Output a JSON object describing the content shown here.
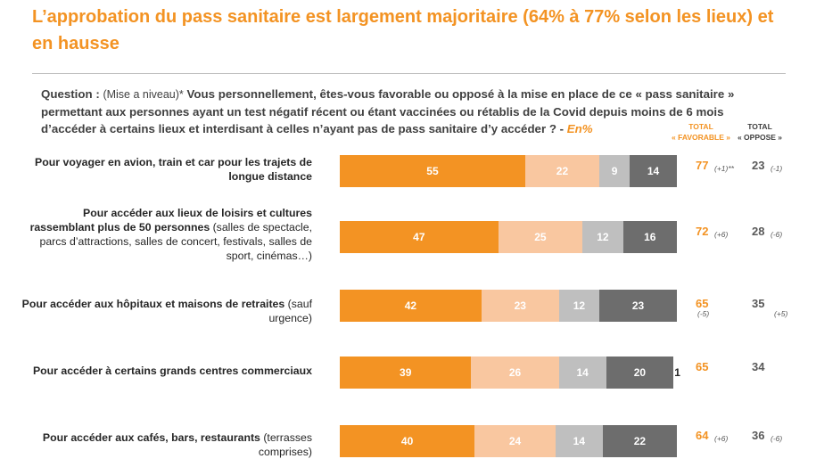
{
  "title": "L’approbation du pass sanitaire est largement majoritaire (64% à 77% selon les lieux) et en hausse",
  "question": {
    "prefix": "Question :",
    "tag": "(Mise a niveau)*",
    "text": " Vous personnellement, êtes-vous favorable ou opposé à la mise en place de ce « pass sanitaire » permettant aux personnes ayant un test négatif récent ou étant vaccinées ou rétablis de la Covid depuis moins de 6 mois d’accéder à certains lieux et interdisant à celles n’ayant pas de pass sanitaire d’y accéder ? -",
    "unit": " En%"
  },
  "headers": {
    "favorable_line1": "TOTAL",
    "favorable_line2": "« FAVORABLE »",
    "oppose_line1": "TOTAL",
    "oppose_line2": "« OPPOSE »"
  },
  "colors": {
    "tout_a_fait_favorable": "#f39323",
    "plutot_favorable": "#f9c7a0",
    "plutot_oppose": "#bfbfbf",
    "tout_a_fait_oppose": "#6d6d6d",
    "accent": "#f39323"
  },
  "chart_data": {
    "type": "bar",
    "orientation": "horizontal-stacked",
    "unit": "%",
    "categories": [
      "Pour voyager en avion, train et car pour les trajets de longue distance",
      "Pour accéder aux lieux de loisirs et cultures rassemblant plus de 50 personnes (salles de spectacle, parcs d’attractions, salles de concert, festivals, salles de sport, cinémas…)",
      "Pour accéder aux hôpitaux et maisons de retraites (sauf urgence)",
      "Pour accéder à certains grands centres commerciaux",
      "Pour accéder aux cafés, bars, restaurants (terrasses comprises)"
    ],
    "rows": [
      {
        "label_bold": "Pour voyager en avion, train et car pour les trajets de longue distance",
        "label_normal": "",
        "segments": [
          55,
          22,
          9,
          14
        ],
        "extra": "",
        "total_favorable": "77",
        "evo_favorable": "(+1)**",
        "total_oppose": "23",
        "evo_oppose": "(-1)"
      },
      {
        "label_bold": "Pour accéder aux lieux de loisirs et cultures rassemblant plus de 50 personnes",
        "label_normal": " (salles de spectacle, parcs d’attractions, salles de concert, festivals, salles de sport, cinémas…)",
        "segments": [
          47,
          25,
          12,
          16
        ],
        "extra": "",
        "total_favorable": "72",
        "evo_favorable": "(+6)",
        "total_oppose": "28",
        "evo_oppose": "(-6)"
      },
      {
        "label_bold": "Pour accéder aux hôpitaux et maisons de retraites",
        "label_normal": " (sauf urgence)",
        "segments": [
          42,
          23,
          12,
          23
        ],
        "extra": "",
        "total_favorable": "65",
        "evo_favorable": "(-5)",
        "total_oppose": "35",
        "evo_oppose": "(+5)"
      },
      {
        "label_bold": "Pour accéder à certains grands centres commerciaux",
        "label_normal": "",
        "segments": [
          39,
          26,
          14,
          20
        ],
        "extra": "1",
        "total_favorable": "65",
        "evo_favorable": "",
        "total_oppose": "34",
        "evo_oppose": ""
      },
      {
        "label_bold": "Pour accéder aux cafés, bars, restaurants",
        "label_normal": " (terrasses comprises)",
        "segments": [
          40,
          24,
          14,
          22
        ],
        "extra": "",
        "total_favorable": "64",
        "evo_favorable": "(+6)",
        "total_oppose": "36",
        "evo_oppose": "(-6)"
      }
    ],
    "xlim": [
      0,
      100
    ]
  }
}
